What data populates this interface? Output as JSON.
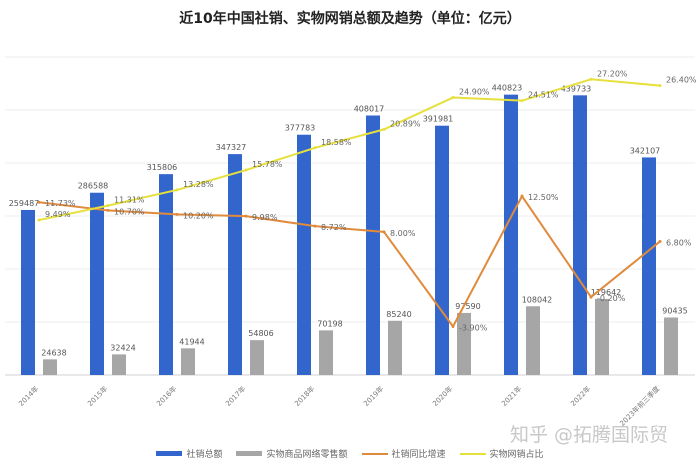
{
  "chart_data": {
    "type": "bar",
    "title": "近10年中国社销、实物网销总额及趋势（单位：亿元）",
    "categories": [
      "2014年",
      "2015年",
      "2016年",
      "2017年",
      "2018年",
      "2019年",
      "2020年",
      "2021年",
      "2022年",
      "2023年前三季度"
    ],
    "ylim": [
      0,
      500000
    ],
    "y2lim": [
      -10,
      30
    ],
    "grid": true,
    "legend_position": "bottom",
    "bar_series": [
      {
        "name": "社销总额",
        "color": "#3366cc",
        "values": [
          259487,
          286588,
          315806,
          347327,
          377783,
          408017,
          391981,
          440823,
          439733,
          342107
        ]
      },
      {
        "name": "实物商品网络零售额",
        "color": "#a6a6a6",
        "values": [
          24638,
          32424,
          41944,
          54806,
          70198,
          85240,
          97590,
          108042,
          119642,
          90435
        ]
      }
    ],
    "line_series": [
      {
        "name": "社销同比增速",
        "color": "#e08a3c",
        "values": [
          11.73,
          10.7,
          10.2,
          9.98,
          8.72,
          8.0,
          -3.9,
          12.5,
          -0.2,
          6.8
        ],
        "labels": [
          "11.73%",
          "10.70%",
          "10.20%",
          "9.98%",
          "8.72%",
          "8.00%",
          "-3.90%",
          "12.50%",
          "-0.20%",
          "6.80%"
        ]
      },
      {
        "name": "实物网销占比",
        "color": "#e6e03c",
        "values": [
          9.49,
          11.31,
          13.28,
          15.78,
          18.58,
          20.89,
          24.9,
          24.51,
          27.2,
          26.4
        ],
        "labels": [
          "9.49%",
          "11.31%",
          "13.28%",
          "15.78%",
          "18.58%",
          "20.89%",
          "24.90%",
          "24.51%",
          "27.20%",
          "26.40%"
        ]
      }
    ]
  },
  "watermark": "知乎 @拓腾国际贸"
}
